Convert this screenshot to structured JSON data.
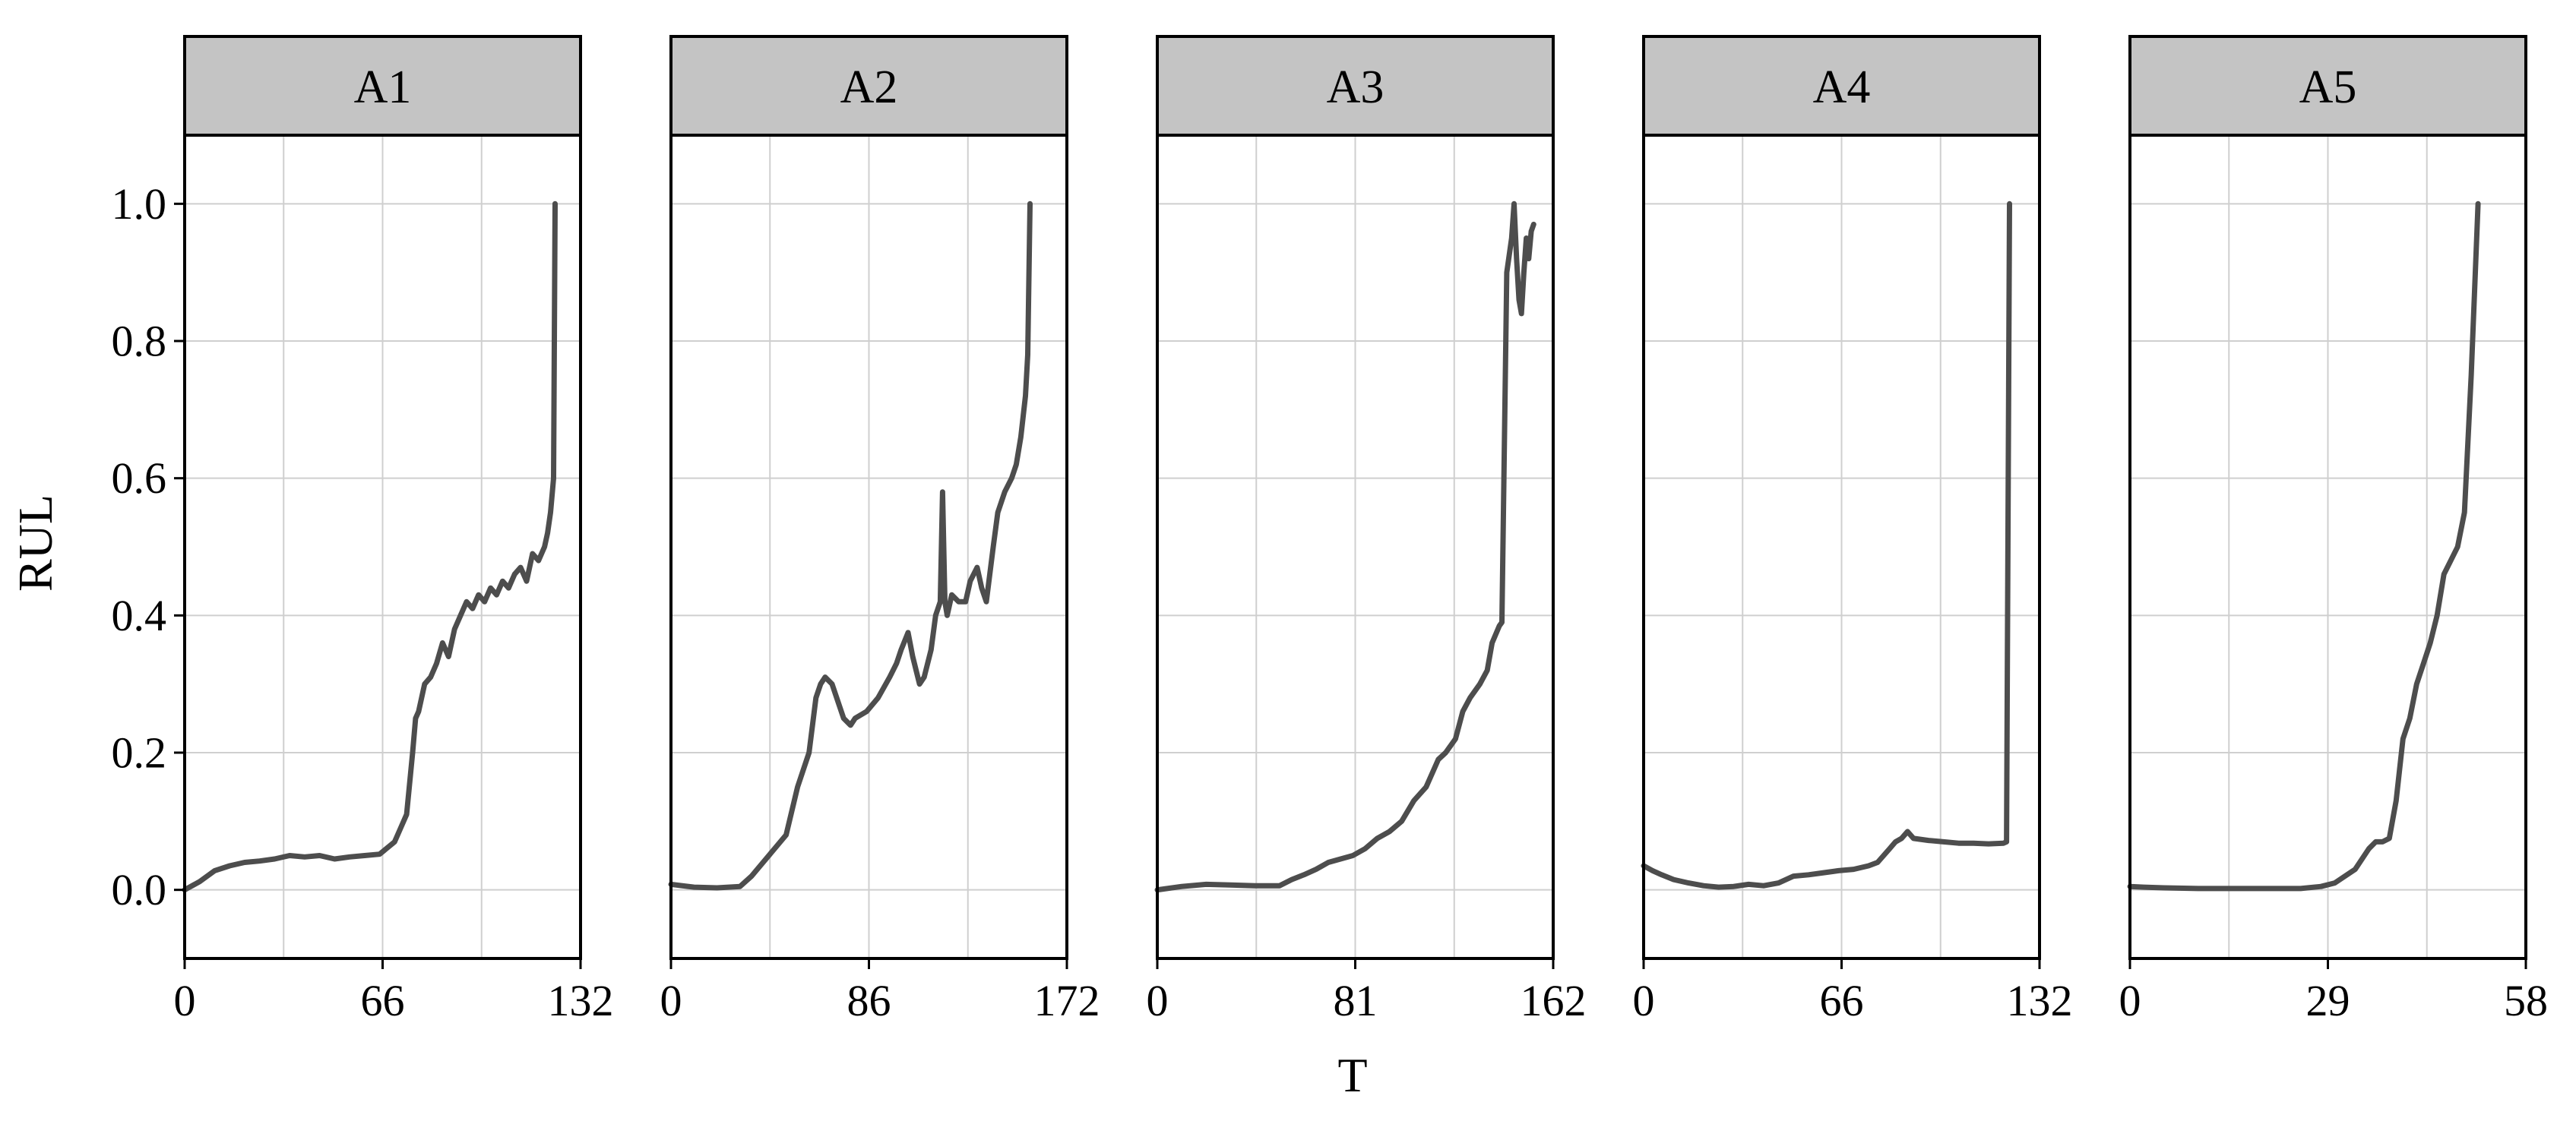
{
  "chart_data": {
    "type": "line",
    "layout": "facets",
    "xlabel": "T",
    "ylabel": "RUL",
    "ylim": [
      -0.1,
      1.1
    ],
    "yticks": [
      0.0,
      0.2,
      0.4,
      0.6,
      0.8,
      1.0
    ],
    "ytick_labels": [
      "0.0",
      "0.2",
      "0.4",
      "0.6",
      "0.8",
      "1.0"
    ],
    "grid": true,
    "panels": [
      {
        "label": "A1",
        "xlim": [
          0,
          132
        ],
        "xticks": [
          0,
          66,
          132
        ],
        "xtick_labels": [
          "0",
          "66",
          "132"
        ],
        "x": [
          0,
          5,
          10,
          15,
          20,
          25,
          30,
          35,
          40,
          45,
          50,
          55,
          60,
          65,
          70,
          72,
          74,
          76,
          77,
          78,
          80,
          82,
          84,
          86,
          88,
          90,
          92,
          94,
          96,
          98,
          100,
          102,
          104,
          106,
          108,
          110,
          112,
          114,
          116,
          118,
          120,
          121,
          122,
          123,
          123.5
        ],
        "y": [
          0.0,
          0.012,
          0.028,
          0.035,
          0.04,
          0.042,
          0.045,
          0.05,
          0.048,
          0.05,
          0.045,
          0.048,
          0.05,
          0.052,
          0.07,
          0.09,
          0.11,
          0.2,
          0.25,
          0.26,
          0.3,
          0.31,
          0.33,
          0.36,
          0.34,
          0.38,
          0.4,
          0.42,
          0.41,
          0.43,
          0.42,
          0.44,
          0.43,
          0.45,
          0.44,
          0.46,
          0.47,
          0.45,
          0.49,
          0.48,
          0.5,
          0.52,
          0.55,
          0.6,
          1.0
        ]
      },
      {
        "label": "A2",
        "xlim": [
          0,
          172
        ],
        "xticks": [
          0,
          86,
          172
        ],
        "xtick_labels": [
          "0",
          "86",
          "172"
        ],
        "x": [
          0,
          10,
          20,
          30,
          35,
          40,
          45,
          50,
          55,
          60,
          63,
          65,
          67,
          70,
          73,
          75,
          78,
          80,
          85,
          90,
          95,
          98,
          100,
          103,
          105,
          108,
          110,
          113,
          115,
          117,
          118,
          119,
          120,
          122,
          125,
          128,
          130,
          133,
          135,
          137,
          140,
          142,
          145,
          148,
          150,
          152,
          154,
          155,
          156
        ],
        "y": [
          0.008,
          0.004,
          0.003,
          0.005,
          0.02,
          0.04,
          0.06,
          0.08,
          0.15,
          0.2,
          0.28,
          0.3,
          0.31,
          0.3,
          0.27,
          0.25,
          0.24,
          0.25,
          0.26,
          0.28,
          0.31,
          0.33,
          0.35,
          0.375,
          0.34,
          0.3,
          0.31,
          0.35,
          0.4,
          0.42,
          0.58,
          0.42,
          0.4,
          0.43,
          0.42,
          0.42,
          0.45,
          0.47,
          0.44,
          0.42,
          0.5,
          0.55,
          0.58,
          0.6,
          0.62,
          0.66,
          0.72,
          0.78,
          1.0
        ]
      },
      {
        "label": "A3",
        "xlim": [
          0,
          162
        ],
        "xticks": [
          0,
          81,
          162
        ],
        "xtick_labels": [
          "0",
          "81",
          "162"
        ],
        "x": [
          0,
          10,
          20,
          30,
          40,
          50,
          55,
          60,
          65,
          70,
          75,
          80,
          85,
          90,
          95,
          100,
          105,
          110,
          115,
          118,
          120,
          122,
          125,
          128,
          130,
          132,
          135,
          137,
          140,
          141,
          143,
          145,
          146,
          147,
          148,
          149,
          150,
          151,
          152,
          153,
          154
        ],
        "y": [
          0.0,
          0.005,
          0.008,
          0.007,
          0.006,
          0.006,
          0.015,
          0.022,
          0.03,
          0.04,
          0.045,
          0.05,
          0.06,
          0.075,
          0.085,
          0.1,
          0.13,
          0.15,
          0.19,
          0.2,
          0.21,
          0.22,
          0.26,
          0.28,
          0.29,
          0.3,
          0.32,
          0.36,
          0.385,
          0.39,
          0.9,
          0.95,
          1.0,
          0.92,
          0.86,
          0.84,
          0.9,
          0.95,
          0.92,
          0.96,
          0.97
        ]
      },
      {
        "label": "A4",
        "xlim": [
          0,
          132
        ],
        "xticks": [
          0,
          66,
          132
        ],
        "xtick_labels": [
          "0",
          "66",
          "132"
        ],
        "x": [
          0,
          3,
          6,
          10,
          15,
          20,
          25,
          30,
          35,
          40,
          45,
          50,
          55,
          60,
          65,
          70,
          75,
          78,
          80,
          82,
          84,
          86,
          88,
          90,
          95,
          100,
          105,
          110,
          115,
          120,
          121,
          122
        ],
        "y": [
          0.035,
          0.028,
          0.022,
          0.015,
          0.01,
          0.006,
          0.004,
          0.005,
          0.008,
          0.006,
          0.01,
          0.02,
          0.022,
          0.025,
          0.028,
          0.03,
          0.035,
          0.04,
          0.05,
          0.06,
          0.07,
          0.075,
          0.085,
          0.075,
          0.072,
          0.07,
          0.068,
          0.068,
          0.067,
          0.068,
          0.07,
          1.0
        ]
      },
      {
        "label": "A5",
        "xlim": [
          0,
          58
        ],
        "xticks": [
          0,
          29,
          58
        ],
        "xtick_labels": [
          "0",
          "29",
          "58"
        ],
        "x": [
          0,
          2,
          5,
          10,
          15,
          20,
          25,
          28,
          30,
          33,
          35,
          36,
          37,
          38,
          39,
          40,
          41,
          42,
          43,
          44,
          45,
          46,
          47,
          48,
          49,
          50,
          51
        ],
        "y": [
          0.005,
          0.004,
          0.003,
          0.002,
          0.002,
          0.002,
          0.002,
          0.005,
          0.01,
          0.03,
          0.06,
          0.07,
          0.07,
          0.075,
          0.13,
          0.22,
          0.25,
          0.3,
          0.33,
          0.36,
          0.4,
          0.46,
          0.48,
          0.5,
          0.55,
          0.75,
          1.0
        ]
      }
    ]
  }
}
